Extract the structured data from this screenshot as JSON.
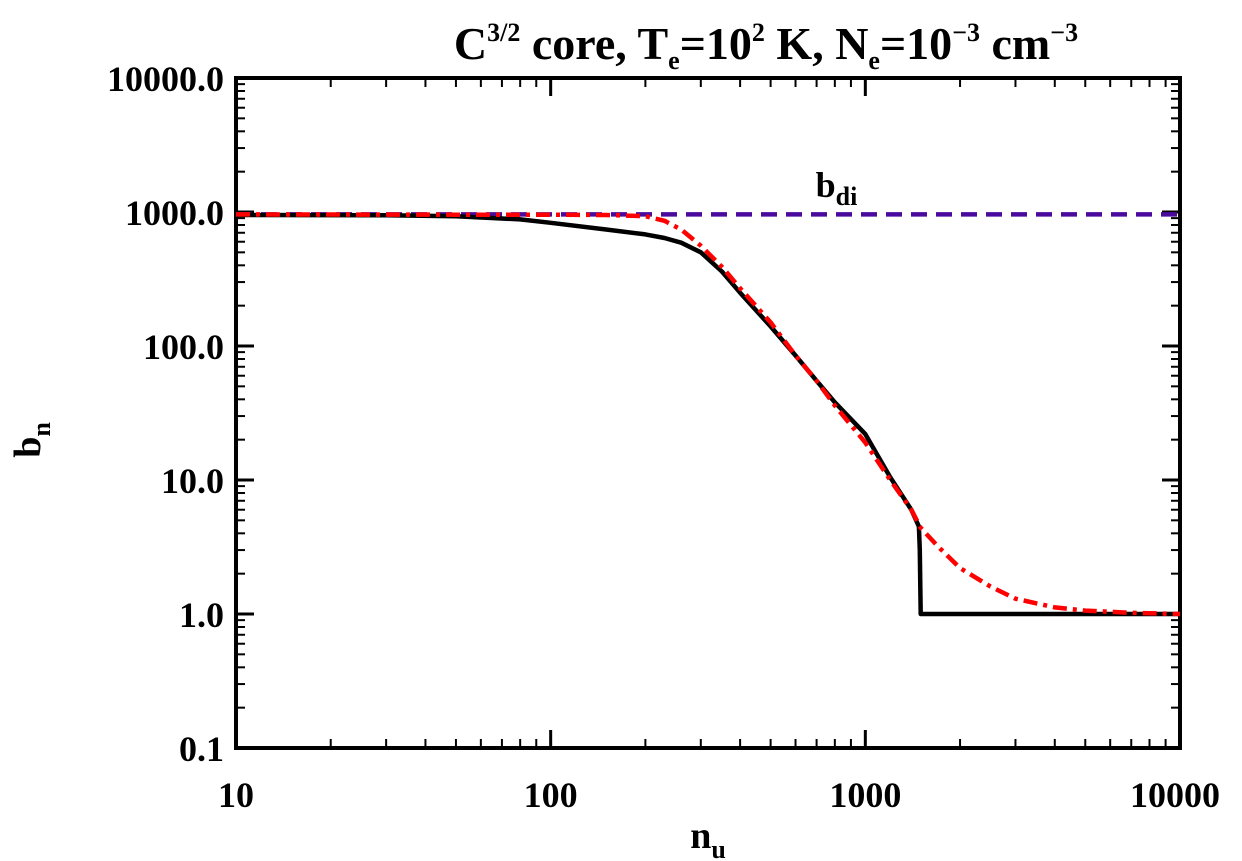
{
  "chart_data": {
    "type": "line",
    "title": {
      "base": "C",
      "base_sup": "3/2",
      "part1": " core, T",
      "part1_sub": "e",
      "part2": "=10",
      "part2_sup": "2",
      "part3": " K, N",
      "part3_sub": "e",
      "part4": "=10",
      "part4_sup": "−3",
      "part5": " cm",
      "part5_sup": "−3"
    },
    "xlabel": {
      "base": "n",
      "sub": "u"
    },
    "ylabel": {
      "base": "b",
      "sub": "n"
    },
    "x_scale": "log",
    "y_scale": "log",
    "xlim": [
      10,
      10000
    ],
    "ylim": [
      0.1,
      10000
    ],
    "x_ticks": [
      {
        "value": 10,
        "label": "10"
      },
      {
        "value": 100,
        "label": "100"
      },
      {
        "value": 1000,
        "label": "1000"
      },
      {
        "value": 10000,
        "label": "10000"
      }
    ],
    "y_ticks": [
      {
        "value": 0.1,
        "label": "0.1"
      },
      {
        "value": 1,
        "label": "1.0"
      },
      {
        "value": 10,
        "label": "10.0"
      },
      {
        "value": 100,
        "label": "100.0"
      },
      {
        "value": 1000,
        "label": "1000.0"
      },
      {
        "value": 10000,
        "label": "10000.0"
      }
    ],
    "grid": false,
    "annotations": [
      {
        "base": "b",
        "sub": "di",
        "x": 1000,
        "y": 1000
      }
    ],
    "series": [
      {
        "style": "solid",
        "color": "#000000",
        "points": [
          [
            10,
            950
          ],
          [
            30,
            945
          ],
          [
            50,
            930
          ],
          [
            80,
            880
          ],
          [
            100,
            830
          ],
          [
            150,
            740
          ],
          [
            200,
            680
          ],
          [
            230,
            640
          ],
          [
            260,
            590
          ],
          [
            300,
            500
          ],
          [
            350,
            360
          ],
          [
            400,
            250
          ],
          [
            500,
            140
          ],
          [
            600,
            85
          ],
          [
            700,
            55
          ],
          [
            800,
            38
          ],
          [
            1000,
            22
          ],
          [
            1200,
            10.5
          ],
          [
            1400,
            6
          ],
          [
            1480,
            4.5
          ],
          [
            1490,
            3
          ],
          [
            1495,
            1.6
          ],
          [
            1500,
            1.0
          ],
          [
            2000,
            1.0
          ],
          [
            5000,
            1.0
          ],
          [
            10000,
            1.0
          ]
        ]
      },
      {
        "style": "dashdot",
        "color": "#ff0000",
        "points": [
          [
            10,
            960
          ],
          [
            50,
            955
          ],
          [
            100,
            955
          ],
          [
            150,
            950
          ],
          [
            200,
            930
          ],
          [
            230,
            860
          ],
          [
            260,
            740
          ],
          [
            300,
            560
          ],
          [
            350,
            390
          ],
          [
            400,
            270
          ],
          [
            500,
            150
          ],
          [
            600,
            85
          ],
          [
            700,
            55
          ],
          [
            800,
            36
          ],
          [
            1000,
            19
          ],
          [
            1200,
            10
          ],
          [
            1400,
            6
          ],
          [
            1500,
            4.4
          ],
          [
            1700,
            3.2
          ],
          [
            2000,
            2.2
          ],
          [
            2500,
            1.6
          ],
          [
            3000,
            1.3
          ],
          [
            4000,
            1.12
          ],
          [
            5000,
            1.06
          ],
          [
            7000,
            1.02
          ],
          [
            10000,
            1.0
          ]
        ]
      },
      {
        "style": "dashed",
        "color": "#4b0a9e",
        "points": [
          [
            10,
            960
          ],
          [
            10000,
            960
          ]
        ]
      }
    ]
  }
}
